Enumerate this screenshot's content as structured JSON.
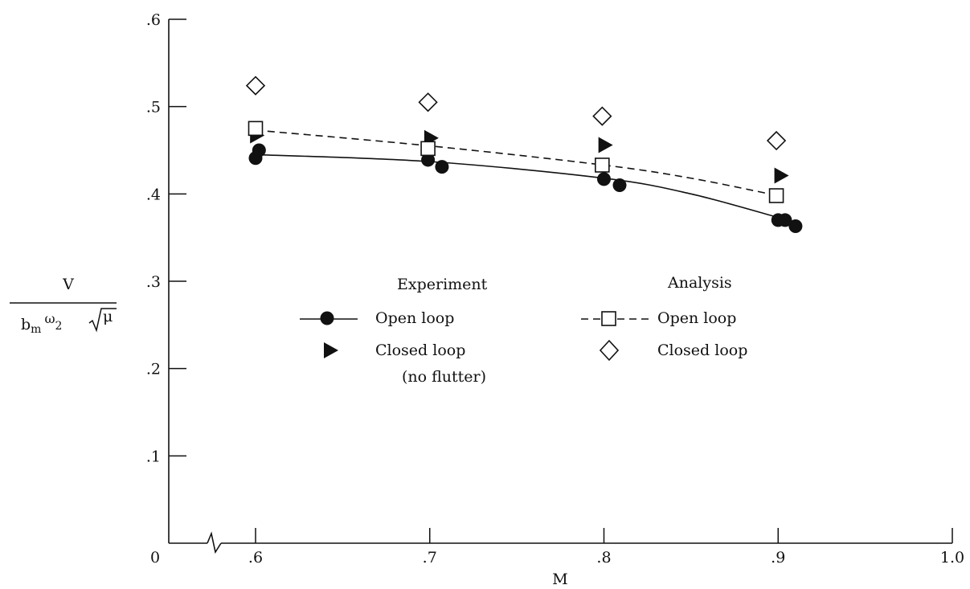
{
  "chart_data": {
    "type": "scatter",
    "xlabel": "M",
    "ylabel": {
      "numerator": "V",
      "denominator_b": "b",
      "denominator_b_sub": "m",
      "denominator_omega": "ω",
      "denominator_omega_sub": "2",
      "denominator_mu": "μ"
    },
    "xlim": [
      0.5,
      1.0
    ],
    "ylim": [
      0,
      0.6
    ],
    "x_axis_break": true,
    "xticks": [
      {
        "value": 0.6,
        "label": ".6"
      },
      {
        "value": 0.7,
        "label": ".7"
      },
      {
        "value": 0.8,
        "label": ".8"
      },
      {
        "value": 0.9,
        "label": ".9"
      },
      {
        "value": 1.0,
        "label": "1.0"
      }
    ],
    "x_origin_label": "0",
    "yticks": [
      {
        "value": 0.1,
        "label": ".1"
      },
      {
        "value": 0.2,
        "label": ".2"
      },
      {
        "value": 0.3,
        "label": ".3"
      },
      {
        "value": 0.4,
        "label": ".4"
      },
      {
        "value": 0.5,
        "label": ".5"
      },
      {
        "value": 0.6,
        "label": ".6"
      }
    ],
    "legend": {
      "experiment_heading": "Experiment",
      "analysis_heading": "Analysis",
      "experiment_open": "Open loop",
      "experiment_closed": "Closed loop",
      "experiment_closed_note": "(no flutter)",
      "analysis_open": "Open loop",
      "analysis_closed": "Closed loop"
    },
    "series": [
      {
        "name": "Experiment Open loop",
        "marker": "filled-circle",
        "points": [
          {
            "x": 0.6,
            "y": 0.441
          },
          {
            "x": 0.602,
            "y": 0.45
          },
          {
            "x": 0.699,
            "y": 0.439
          },
          {
            "x": 0.707,
            "y": 0.431
          },
          {
            "x": 0.8,
            "y": 0.417
          },
          {
            "x": 0.809,
            "y": 0.41
          },
          {
            "x": 0.9,
            "y": 0.37
          },
          {
            "x": 0.904,
            "y": 0.37
          },
          {
            "x": 0.91,
            "y": 0.363
          }
        ],
        "curve": {
          "style": "solid",
          "points": [
            {
              "x": 0.6,
              "y": 0.445
            },
            {
              "x": 0.7,
              "y": 0.437
            },
            {
              "x": 0.8,
              "y": 0.418
            },
            {
              "x": 0.85,
              "y": 0.4
            },
            {
              "x": 0.9,
              "y": 0.373
            }
          ]
        }
      },
      {
        "name": "Experiment Closed loop (no flutter)",
        "marker": "filled-triangle-right",
        "points": [
          {
            "x": 0.601,
            "y": 0.467
          },
          {
            "x": 0.701,
            "y": 0.464
          },
          {
            "x": 0.801,
            "y": 0.456
          },
          {
            "x": 0.902,
            "y": 0.421
          }
        ]
      },
      {
        "name": "Analysis Open loop",
        "marker": "open-square",
        "points": [
          {
            "x": 0.6,
            "y": 0.475
          },
          {
            "x": 0.699,
            "y": 0.452
          },
          {
            "x": 0.799,
            "y": 0.433
          },
          {
            "x": 0.899,
            "y": 0.398
          }
        ],
        "curve": {
          "style": "dashed",
          "points": [
            {
              "x": 0.6,
              "y": 0.473
            },
            {
              "x": 0.7,
              "y": 0.455
            },
            {
              "x": 0.8,
              "y": 0.433
            },
            {
              "x": 0.85,
              "y": 0.418
            },
            {
              "x": 0.9,
              "y": 0.398
            }
          ]
        }
      },
      {
        "name": "Analysis Closed loop",
        "marker": "open-diamond",
        "points": [
          {
            "x": 0.6,
            "y": 0.524
          },
          {
            "x": 0.699,
            "y": 0.505
          },
          {
            "x": 0.799,
            "y": 0.489
          },
          {
            "x": 0.899,
            "y": 0.461
          }
        ]
      }
    ]
  }
}
